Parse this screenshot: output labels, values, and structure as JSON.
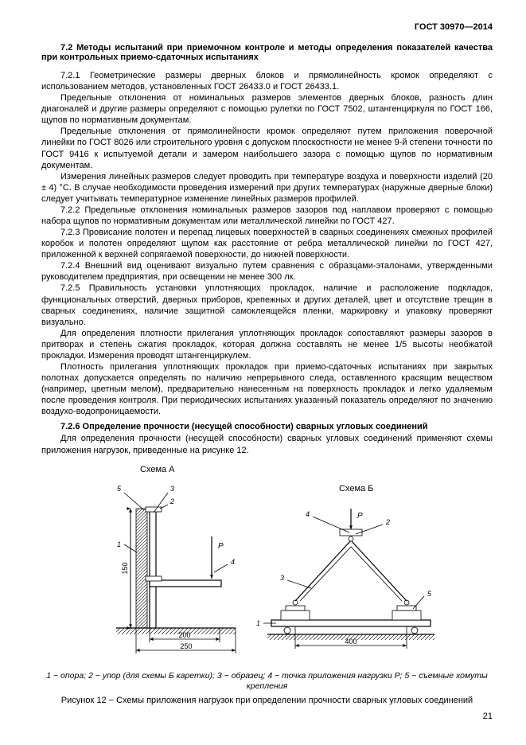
{
  "header": {
    "doc_id": "ГОСТ 30970—2014"
  },
  "section72": {
    "heading": "7.2 Методы испытаний при приемочном контроле и методы определения показателей качества при контрольных приемо-сдаточных испытаниях",
    "p721a": "7.2.1 Геометрические размеры дверных блоков и прямолинейность кромок определяют с использованием методов, установленных ГОСТ 26433.0 и ГОСТ 26433.1.",
    "p721b": "Предельные отклонения от номинальных размеров элементов дверных блоков, разность длин диагоналей и другие размеры определяют с помощью рулетки по ГОСТ 7502, штангенциркуля по ГОСТ 166, щупов по нормативным документам.",
    "p721c": "Предельные отклонения от прямолинейности кромок определяют путем приложения поверочной линейки по ГОСТ 8026 или строительного уровня с допуском плоскостности не менее 9-й степени точности по ГОСТ 9416 к испытуемой детали и замером наибольшего зазора с помощью щупов по нормативным документам.",
    "p721d": "Измерения линейных размеров следует проводить при температуре воздуха и поверхности изделий (20 ± 4) °C. В случае необходимости проведения измерений при других температурах (наружные дверные блоки) следует учитывать температурное изменение линейных размеров профилей.",
    "p722": "7.2.2 Предельные отклонения номинальных размеров зазоров под наплавом проверяют с помощью набора щупов по нормативным документам или металлической линейки по ГОСТ 427.",
    "p723": "7.2.3 Провисание полотен и перепад лицевых поверхностей в сварных соединениях смежных профилей коробок и полотен определяют щупом как расстояние от ребра металлической линейки по ГОСТ 427, приложенной к верхней сопрягаемой поверхности, до нижней поверхности.",
    "p724": "7.2.4 Внешний вид оценивают визуально путем сравнения с образцами-эталонами, утвержденными руководителем предприятия, при освещении не менее 300 лк.",
    "p725a": "7.2.5 Правильность установки уплотняющих прокладок, наличие и расположение подкладок, функциональных отверстий, дверных приборов, крепежных и других деталей, цвет и отсутствие трещин в сварных соединениях, наличие защитной самоклеящейся пленки, маркировку и упаковку проверяют визуально.",
    "p725b": "Для определения плотности прилегания уплотняющих прокладок сопоставляют размеры зазоров в притворах и степень сжатия прокладок, которая должна составлять не менее 1/5 высоты необжатой прокладки. Измерения проводят штангенциркулем.",
    "p725c": "Плотность прилегания уплотняющих прокладок при приемо-сдаточных испытаниях при закрытых полотнах допускается определять по наличию непрерывного следа, оставленного красящим веществом (например, цветным мелом), предварительно нанесенным на поверхность прокладок и легко удаляемым после проведения контроля. При периодических испытаниях указанный показатель определяют по значению воздухо-водопроницаемости.",
    "p726h": "7.2.6 Определение прочности (несущей способности) сварных угловых соединений",
    "p726a": "Для определения прочности (несущей способности) сварных угловых соединений применяют схемы приложения нагрузок, приведенные на рисунке 12."
  },
  "figure": {
    "labelA": "Схема А",
    "labelB": "Схема Б",
    "load": "P",
    "n1": "1",
    "n2": "2",
    "n3": "3",
    "n4": "4",
    "n5": "5",
    "dim150": "150",
    "dim200": "200",
    "dim250": "250",
    "dim400": "400",
    "legend": "1 − опора; 2 − упор (для схемы Б каретки); 3 − образец; 4 − точка приложения нагрузки P; 5 − съемные хомуты крепления",
    "caption": "Рисунок 12 − Схемы приложения нагрузок при определении прочности сварных угловых соединений"
  },
  "pagenum": "21",
  "style": {
    "stroke": "#000000",
    "hatch": "#000000",
    "text": "#000000",
    "sw_thin": 0.8,
    "sw_med": 1.2,
    "font_small": 9,
    "font_label": 10,
    "font_title": 11
  }
}
